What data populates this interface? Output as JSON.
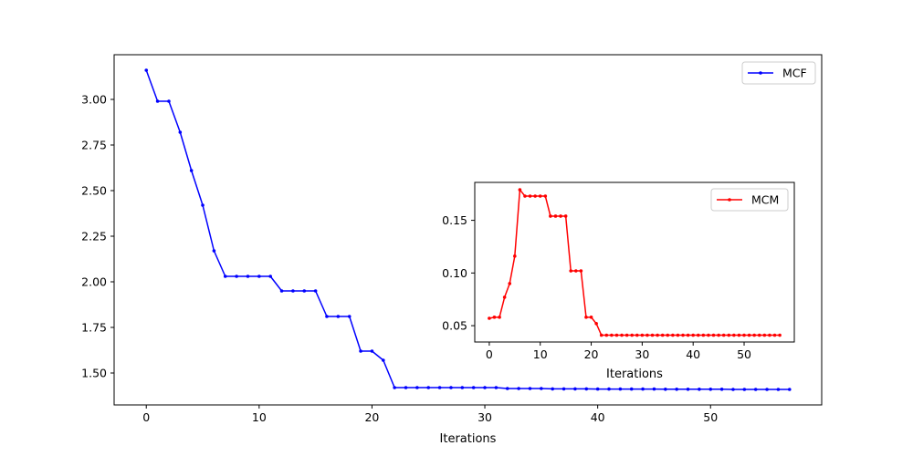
{
  "chart_data": [
    {
      "type": "line",
      "xlabel": "Iterations",
      "ylabel": "",
      "xlim": [
        -2.85,
        59.85
      ],
      "ylim": [
        1.325,
        3.245
      ],
      "xticks": [
        0,
        10,
        20,
        30,
        40,
        50
      ],
      "yticks": [
        1.5,
        1.75,
        2.0,
        2.25,
        2.5,
        2.75,
        3.0
      ],
      "ytick_labels": [
        "1.50",
        "1.75",
        "2.00",
        "2.25",
        "2.50",
        "2.75",
        "3.00"
      ],
      "legend_position": "upper right",
      "series": [
        {
          "name": "MCF",
          "color": "#0000ff",
          "marker": "dot",
          "x": [
            0,
            1,
            2,
            3,
            4,
            5,
            6,
            7,
            8,
            9,
            10,
            11,
            12,
            13,
            14,
            15,
            16,
            17,
            18,
            19,
            20,
            21,
            22,
            23,
            24,
            25,
            26,
            27,
            28,
            29,
            30,
            31,
            32,
            33,
            34,
            35,
            36,
            37,
            38,
            39,
            40,
            41,
            42,
            43,
            44,
            45,
            46,
            47,
            48,
            49,
            50,
            51,
            52,
            53,
            54,
            55,
            56,
            57
          ],
          "y": [
            3.16,
            2.99,
            2.99,
            2.82,
            2.61,
            2.42,
            2.17,
            2.03,
            2.03,
            2.03,
            2.03,
            2.03,
            1.95,
            1.95,
            1.95,
            1.95,
            1.81,
            1.81,
            1.81,
            1.62,
            1.62,
            1.57,
            1.42,
            1.42,
            1.42,
            1.42,
            1.42,
            1.42,
            1.42,
            1.42,
            1.42,
            1.42,
            1.415,
            1.415,
            1.415,
            1.415,
            1.413,
            1.413,
            1.413,
            1.413,
            1.412,
            1.412,
            1.412,
            1.412,
            1.412,
            1.412,
            1.411,
            1.411,
            1.411,
            1.411,
            1.411,
            1.411,
            1.41,
            1.41,
            1.41,
            1.41,
            1.41,
            1.41
          ]
        }
      ]
    },
    {
      "type": "line",
      "xlabel": "Iterations",
      "ylabel": "",
      "xlim": [
        -2.85,
        59.85
      ],
      "ylim": [
        0.0345,
        0.186
      ],
      "xticks": [
        0,
        10,
        20,
        30,
        40,
        50
      ],
      "yticks": [
        0.05,
        0.1,
        0.15
      ],
      "ytick_labels": [
        "0.05",
        "0.10",
        "0.15"
      ],
      "legend_position": "upper right",
      "series": [
        {
          "name": "MCM",
          "color": "#ff0000",
          "marker": "dot",
          "x": [
            0,
            1,
            2,
            3,
            4,
            5,
            6,
            7,
            8,
            9,
            10,
            11,
            12,
            13,
            14,
            15,
            16,
            17,
            18,
            19,
            20,
            21,
            22,
            23,
            24,
            25,
            26,
            27,
            28,
            29,
            30,
            31,
            32,
            33,
            34,
            35,
            36,
            37,
            38,
            39,
            40,
            41,
            42,
            43,
            44,
            45,
            46,
            47,
            48,
            49,
            50,
            51,
            52,
            53,
            54,
            55,
            56,
            57
          ],
          "y": [
            0.057,
            0.058,
            0.058,
            0.077,
            0.09,
            0.116,
            0.179,
            0.173,
            0.173,
            0.173,
            0.173,
            0.173,
            0.154,
            0.154,
            0.154,
            0.154,
            0.102,
            0.102,
            0.102,
            0.058,
            0.058,
            0.052,
            0.041,
            0.041,
            0.041,
            0.041,
            0.041,
            0.041,
            0.041,
            0.041,
            0.041,
            0.041,
            0.041,
            0.041,
            0.041,
            0.041,
            0.041,
            0.041,
            0.041,
            0.041,
            0.041,
            0.041,
            0.041,
            0.041,
            0.041,
            0.041,
            0.041,
            0.041,
            0.041,
            0.041,
            0.041,
            0.041,
            0.041,
            0.041,
            0.041,
            0.041,
            0.041,
            0.041
          ]
        }
      ]
    }
  ]
}
